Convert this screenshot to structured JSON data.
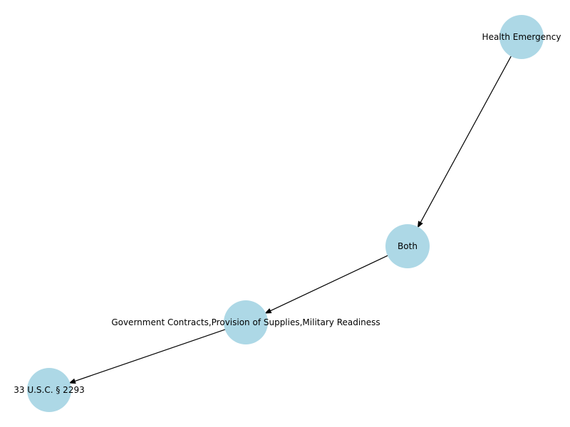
{
  "diagram": {
    "node_color": "#add8e6",
    "edge_color": "#000000",
    "nodes": [
      {
        "id": "health",
        "label": "Health Emergency"
      },
      {
        "id": "both",
        "label": "Both"
      },
      {
        "id": "gov",
        "label": "Government Contracts,Provision of Supplies,Military Readiness"
      },
      {
        "id": "usc",
        "label": "33 U.S.C. § 2293"
      }
    ],
    "edges": [
      {
        "from": "health",
        "to": "both",
        "directed": true
      },
      {
        "from": "both",
        "to": "gov",
        "directed": true
      },
      {
        "from": "gov",
        "to": "usc",
        "directed": true
      }
    ]
  }
}
